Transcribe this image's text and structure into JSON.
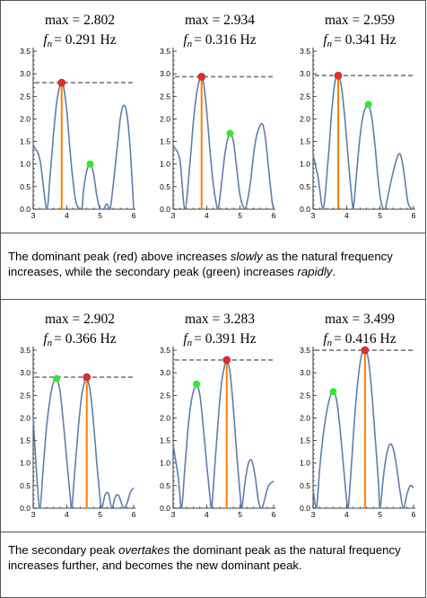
{
  "colors": {
    "curve": "#5e7ead",
    "marker_line": "#ff7f00",
    "max_line": "#7a7a7a",
    "dominant_peak": "#e0302b",
    "secondary_peak": "#33e82e"
  },
  "captions": [
    {
      "line1": [
        {
          "text": "The dominant peak (red) above increases ",
          "italic": false
        },
        {
          "text": "slowly",
          "italic": true
        },
        {
          "text": " as the natural frequency",
          "italic": false
        }
      ],
      "line2": [
        {
          "text": "increases, while the secondary peak (green) increases ",
          "italic": false
        },
        {
          "text": "rapidly",
          "italic": true
        },
        {
          "text": ".",
          "italic": false
        }
      ]
    },
    {
      "line1": [
        {
          "text": "The secondary peak ",
          "italic": false
        },
        {
          "text": "overtakes",
          "italic": true
        },
        {
          "text": " the dominant peak as the natural frequency",
          "italic": false
        }
      ],
      "line2": [
        {
          "text": " increases further, and becomes the new dominant peak.",
          "italic": false
        }
      ]
    }
  ],
  "chart_data": [
    {
      "type": "line",
      "title_max": "max = 2.802",
      "title_fn": "= 0.291 Hz",
      "xlim": [
        3,
        6
      ],
      "ylim": [
        0,
        3.5
      ],
      "x_ticks": [
        "3",
        "4",
        "5",
        "6"
      ],
      "y_ticks": [
        "0.0",
        "0.5",
        "1.0",
        "1.5",
        "2.0",
        "2.5",
        "3.0",
        "3.5"
      ],
      "max_value": 2.802,
      "dominant_peak": {
        "x": 3.85,
        "y": 2.802
      },
      "secondary_peak": {
        "x": 4.7,
        "y": 1.0
      },
      "x": [
        3.0,
        3.2,
        3.4,
        3.5,
        3.6,
        3.7,
        3.8,
        3.85,
        3.9,
        4.0,
        4.1,
        4.2,
        4.3,
        4.45,
        4.5,
        4.6,
        4.7,
        4.8,
        4.9,
        5.0,
        5.1,
        5.2,
        5.3,
        5.5,
        5.6,
        5.7,
        5.8,
        5.9,
        6.0
      ],
      "y": [
        1.4,
        1.1,
        0.0,
        0.7,
        1.6,
        2.35,
        2.75,
        2.802,
        2.75,
        2.2,
        1.3,
        0.55,
        0.1,
        0.0,
        0.4,
        0.85,
        1.0,
        0.8,
        0.3,
        0.0,
        0.0,
        0.12,
        0.0,
        1.3,
        2.0,
        2.3,
        2.1,
        1.3,
        0.0
      ]
    },
    {
      "type": "line",
      "title_max": "max = 2.934",
      "title_fn": "= 0.316 Hz",
      "xlim": [
        3,
        6
      ],
      "ylim": [
        0,
        3.5
      ],
      "x_ticks": [
        "3",
        "4",
        "5",
        "6"
      ],
      "y_ticks": [
        "0.0",
        "0.5",
        "1.0",
        "1.5",
        "2.0",
        "2.5",
        "3.0",
        "3.5"
      ],
      "max_value": 2.934,
      "dominant_peak": {
        "x": 3.85,
        "y": 2.934
      },
      "secondary_peak": {
        "x": 4.7,
        "y": 1.68
      },
      "x": [
        3.0,
        3.2,
        3.35,
        3.5,
        3.6,
        3.7,
        3.8,
        3.85,
        3.9,
        4.0,
        4.1,
        4.2,
        4.3,
        4.35,
        4.45,
        4.55,
        4.65,
        4.7,
        4.8,
        4.9,
        5.0,
        5.15,
        5.3,
        5.4,
        5.5,
        5.65,
        5.75,
        5.85,
        5.95,
        6.0
      ],
      "y": [
        1.4,
        1.1,
        0.0,
        1.0,
        1.9,
        2.55,
        2.9,
        2.934,
        2.85,
        2.2,
        1.3,
        0.55,
        0.08,
        0.0,
        0.6,
        1.25,
        1.62,
        1.68,
        1.5,
        0.9,
        0.3,
        0.0,
        0.55,
        1.2,
        1.65,
        1.9,
        1.6,
        0.9,
        0.2,
        0.0
      ]
    },
    {
      "type": "line",
      "title_max": "max = 2.959",
      "title_fn": "= 0.341 Hz",
      "xlim": [
        3,
        6
      ],
      "ylim": [
        0,
        3.5
      ],
      "x_ticks": [
        "3",
        "4",
        "5",
        "6"
      ],
      "y_ticks": [
        "0.0",
        "0.5",
        "1.0",
        "1.5",
        "2.0",
        "2.5",
        "3.0",
        "3.5"
      ],
      "max_value": 2.959,
      "dominant_peak": {
        "x": 3.75,
        "y": 2.959
      },
      "secondary_peak": {
        "x": 4.65,
        "y": 2.32
      },
      "x": [
        3.0,
        3.15,
        3.3,
        3.45,
        3.55,
        3.65,
        3.75,
        3.85,
        3.95,
        4.05,
        4.15,
        4.2,
        4.3,
        4.4,
        4.5,
        4.6,
        4.65,
        4.75,
        4.85,
        4.95,
        5.05,
        5.15,
        5.25,
        5.4,
        5.55,
        5.65,
        5.75,
        5.85,
        6.0
      ],
      "y": [
        1.2,
        0.7,
        0.0,
        1.1,
        2.1,
        2.8,
        2.959,
        2.7,
        2.0,
        1.1,
        0.3,
        0.0,
        0.8,
        1.6,
        2.1,
        2.3,
        2.32,
        2.05,
        1.4,
        0.6,
        0.1,
        0.0,
        0.35,
        0.85,
        1.22,
        1.1,
        0.6,
        0.1,
        0.0
      ]
    },
    {
      "type": "line",
      "title_max": "max = 2.902",
      "title_fn": "= 0.366 Hz",
      "xlim": [
        3,
        6
      ],
      "ylim": [
        0,
        3.5
      ],
      "x_ticks": [
        "3",
        "4",
        "5",
        "6"
      ],
      "y_ticks": [
        "0.0",
        "0.5",
        "1.0",
        "1.5",
        "2.0",
        "2.5",
        "3.0",
        "3.5"
      ],
      "max_value": 2.902,
      "dominant_peak": {
        "x": 4.6,
        "y": 2.902
      },
      "secondary_peak": {
        "x": 3.7,
        "y": 2.87
      },
      "x": [
        3.0,
        3.1,
        3.2,
        3.3,
        3.4,
        3.5,
        3.6,
        3.7,
        3.8,
        3.9,
        4.0,
        4.1,
        4.15,
        4.25,
        4.35,
        4.45,
        4.55,
        4.6,
        4.7,
        4.8,
        4.9,
        5.0,
        5.05,
        5.15,
        5.25,
        5.35,
        5.45,
        5.55,
        5.7,
        5.8,
        5.9,
        6.0
      ],
      "y": [
        2.0,
        0.8,
        0.0,
        0.9,
        1.8,
        2.4,
        2.78,
        2.87,
        2.6,
        1.9,
        1.1,
        0.3,
        0.0,
        0.9,
        1.8,
        2.5,
        2.85,
        2.902,
        2.6,
        1.9,
        1.0,
        0.2,
        0.0,
        0.3,
        0.32,
        0.0,
        0.25,
        0.28,
        0.0,
        0.1,
        0.35,
        0.45
      ]
    },
    {
      "type": "line",
      "title_max": "max = 3.283",
      "title_fn": "= 0.391 Hz",
      "xlim": [
        3,
        6
      ],
      "ylim": [
        0,
        3.5
      ],
      "x_ticks": [
        "3",
        "4",
        "5",
        "6"
      ],
      "y_ticks": [
        "0.0",
        "0.5",
        "1.0",
        "1.5",
        "2.0",
        "2.5",
        "3.0",
        "3.5"
      ],
      "max_value": 3.283,
      "dominant_peak": {
        "x": 4.6,
        "y": 3.283
      },
      "secondary_peak": {
        "x": 3.7,
        "y": 2.75
      },
      "x": [
        3.0,
        3.15,
        3.25,
        3.35,
        3.45,
        3.55,
        3.65,
        3.7,
        3.8,
        3.9,
        4.0,
        4.1,
        4.15,
        4.25,
        4.35,
        4.45,
        4.55,
        4.6,
        4.7,
        4.8,
        4.9,
        5.0,
        5.05,
        5.15,
        5.25,
        5.35,
        5.45,
        5.55,
        5.65,
        5.75,
        5.85,
        6.0
      ],
      "y": [
        1.4,
        0.7,
        0.0,
        0.9,
        1.8,
        2.4,
        2.7,
        2.75,
        2.5,
        1.8,
        1.0,
        0.25,
        0.0,
        1.0,
        2.0,
        2.8,
        3.2,
        3.283,
        3.0,
        2.2,
        1.2,
        0.3,
        0.0,
        0.6,
        1.0,
        1.05,
        0.7,
        0.15,
        0.0,
        0.25,
        0.5,
        0.6
      ]
    },
    {
      "type": "line",
      "title_max": "max = 3.499",
      "title_fn": "= 0.416 Hz",
      "xlim": [
        3,
        6
      ],
      "ylim": [
        0,
        3.5
      ],
      "x_ticks": [
        "3",
        "4",
        "5",
        "6"
      ],
      "y_ticks": [
        "0.0",
        "0.5",
        "1.0",
        "1.5",
        "2.0",
        "2.5",
        "3.0",
        "3.5"
      ],
      "max_value": 3.499,
      "dominant_peak": {
        "x": 4.55,
        "y": 3.499
      },
      "secondary_peak": {
        "x": 3.6,
        "y": 2.58
      },
      "x": [
        3.0,
        3.1,
        3.2,
        3.3,
        3.4,
        3.5,
        3.6,
        3.7,
        3.8,
        3.9,
        4.0,
        4.05,
        4.15,
        4.25,
        4.35,
        4.45,
        4.55,
        4.65,
        4.75,
        4.85,
        4.95,
        5.0,
        5.1,
        5.2,
        5.3,
        5.4,
        5.5,
        5.6,
        5.7,
        5.8,
        5.9,
        6.0
      ],
      "y": [
        0.4,
        0.0,
        0.9,
        1.6,
        2.1,
        2.45,
        2.58,
        2.4,
        1.8,
        1.0,
        0.2,
        0.0,
        1.0,
        2.1,
        2.9,
        3.4,
        3.499,
        3.3,
        2.6,
        1.6,
        0.6,
        0.0,
        0.7,
        1.2,
        1.42,
        1.3,
        0.9,
        0.35,
        0.0,
        0.3,
        0.5,
        0.45
      ]
    }
  ]
}
